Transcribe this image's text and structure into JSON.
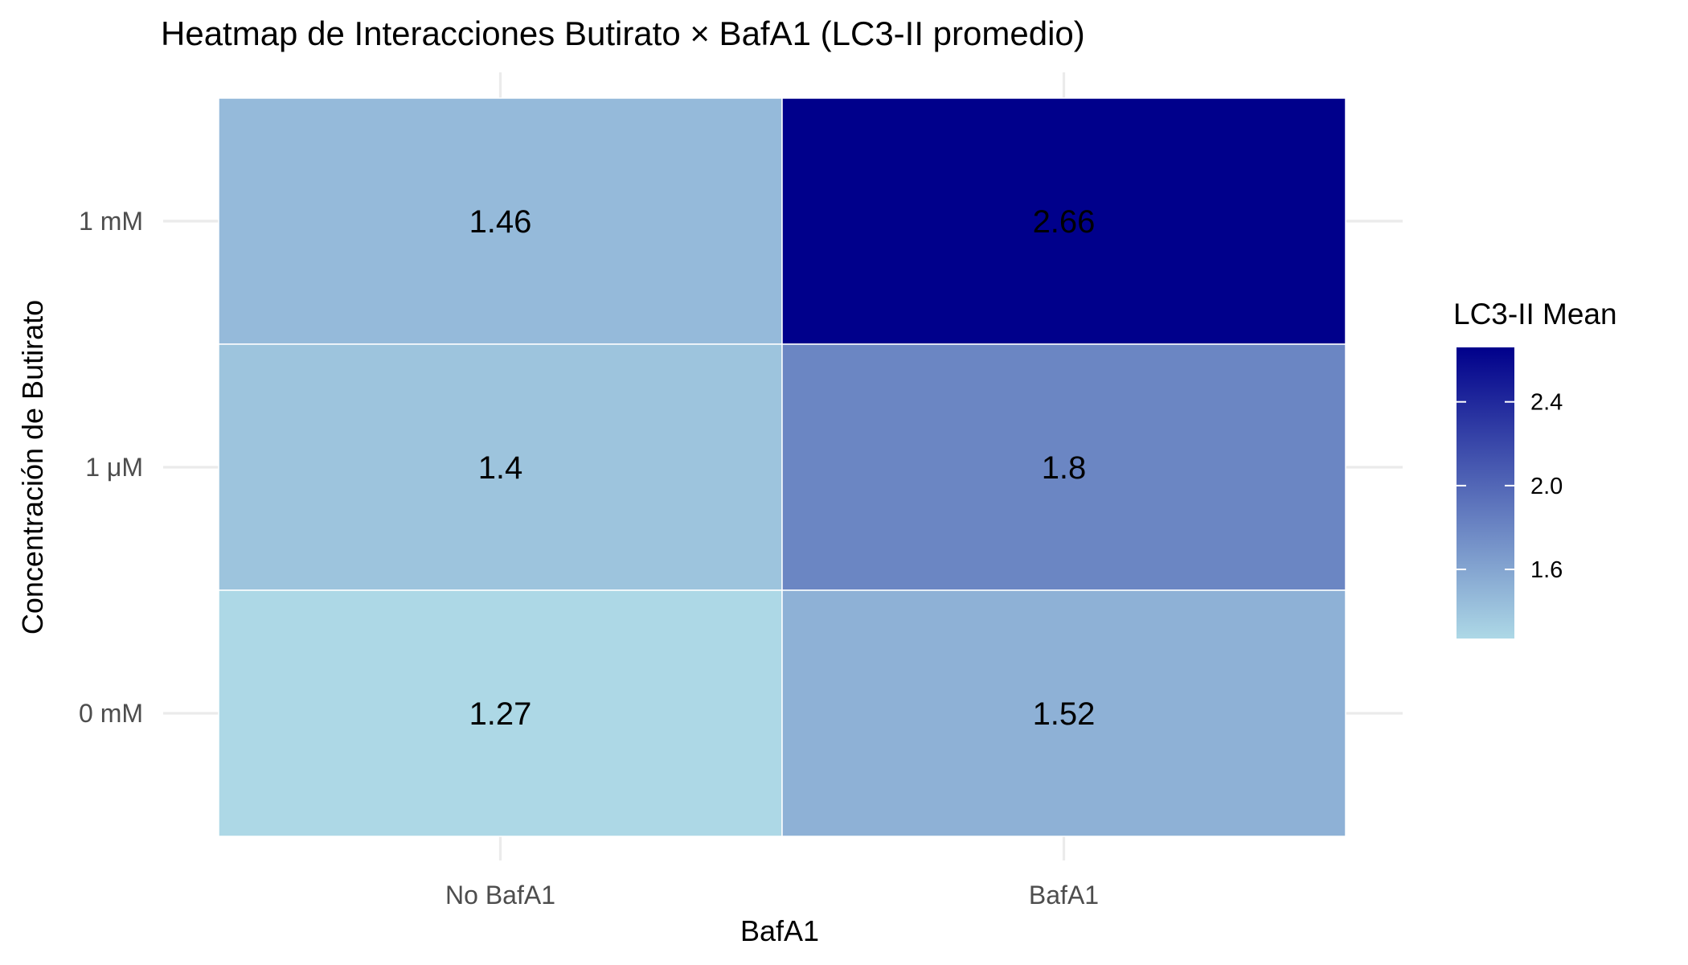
{
  "chart_data": {
    "type": "heatmap",
    "title": "Heatmap de Interacciones Butirato × BafA1 (LC3-II promedio)",
    "xlabel": "BafA1",
    "ylabel": "Concentración de Butirato",
    "x_categories": [
      "No BafA1",
      "BafA1"
    ],
    "y_categories": [
      "0 mM",
      "1 μM",
      "1 mM"
    ],
    "cells": [
      {
        "x": "No BafA1",
        "y": "1 mM",
        "value": 1.46,
        "label": "1.46"
      },
      {
        "x": "BafA1",
        "y": "1 mM",
        "value": 2.66,
        "label": "2.66"
      },
      {
        "x": "No BafA1",
        "y": "1 μM",
        "value": 1.4,
        "label": "1.4"
      },
      {
        "x": "BafA1",
        "y": "1 μM",
        "value": 1.8,
        "label": "1.8"
      },
      {
        "x": "No BafA1",
        "y": "0 mM",
        "value": 1.27,
        "label": "1.27"
      },
      {
        "x": "BafA1",
        "y": "0 mM",
        "value": 1.52,
        "label": "1.52"
      }
    ],
    "legend": {
      "title": "LC3-II Mean",
      "ticks": [
        1.6,
        2.0,
        2.4
      ],
      "tick_labels": [
        "1.6",
        "2.0",
        "2.4"
      ],
      "range": [
        1.27,
        2.66
      ],
      "color_low": "#add8e6",
      "color_high": "#00008b",
      "placement": "right"
    },
    "grid": true
  }
}
